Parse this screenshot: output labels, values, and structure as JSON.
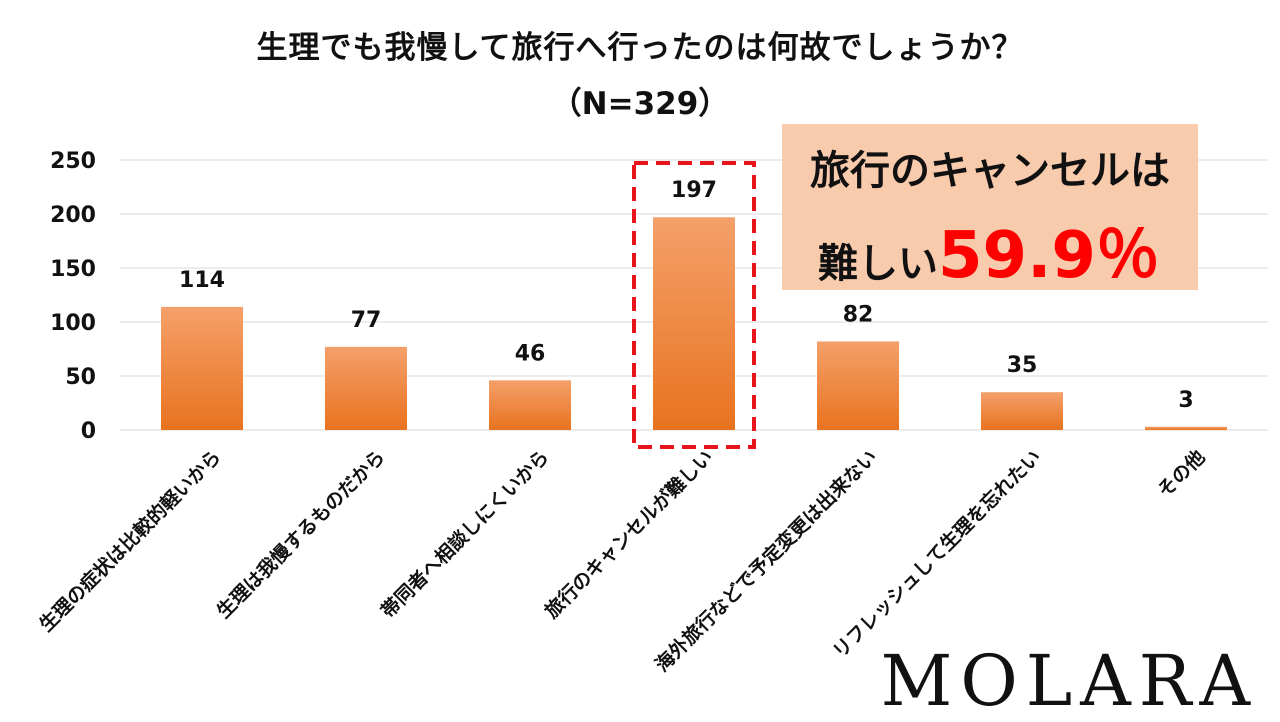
{
  "title": "生理でも我慢して旅行へ行ったのは何故でしょうか？",
  "subtitle": "（N=329）",
  "callout": {
    "line1": "旅行のキャンセルは",
    "line2_text": "難しい",
    "line2_pct": "59.9％",
    "background": "#f8cbad",
    "highlight_color": "#ff0000"
  },
  "logo": "MOLARA",
  "colors": {
    "bar_top": "#f4a06a",
    "bar_bottom": "#e8731f",
    "highlight_box": "#e8141c",
    "grid": "#d9d9d9"
  },
  "chart_data": {
    "type": "bar",
    "title": "生理でも我慢して旅行へ行ったのは何故でしょうか？",
    "subtitle": "（N=329）",
    "xlabel": "",
    "ylabel": "",
    "ylim": [
      0,
      250
    ],
    "yticks": [
      0,
      50,
      100,
      150,
      200,
      250
    ],
    "grid": true,
    "categories": [
      "生理の症状は比較的軽いから",
      "生理は我慢するものだから",
      "帯同者へ相談しにくいから",
      "旅行のキャンセルが難しい",
      "海外旅行などで予定変更は出来ない",
      "リフレッシュして生理を忘れたい",
      "その他"
    ],
    "values": [
      114,
      77,
      46,
      197,
      82,
      35,
      3
    ],
    "highlighted_category": "旅行のキャンセルが難しい"
  }
}
